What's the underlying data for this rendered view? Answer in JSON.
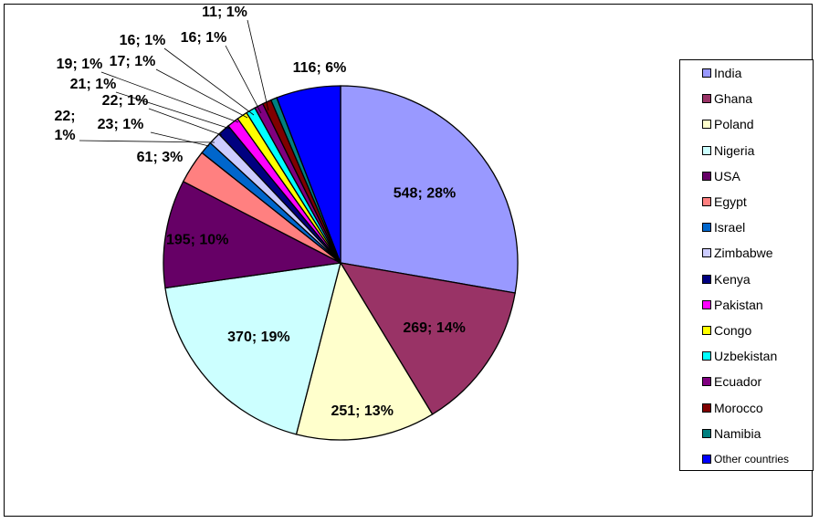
{
  "chart_data": {
    "type": "pie",
    "start_angle_deg": 0,
    "direction": "clockwise",
    "legend_position": "right",
    "slices": [
      {
        "name": "India",
        "value": 548,
        "label": "548; 28%",
        "color": "#9999FF"
      },
      {
        "name": "Ghana",
        "value": 269,
        "label": "269; 14%",
        "color": "#993366"
      },
      {
        "name": "Poland",
        "value": 251,
        "label": "251; 13%",
        "color": "#FFFFCC"
      },
      {
        "name": "Nigeria",
        "value": 370,
        "label": "370; 19%",
        "color": "#CCFFFF"
      },
      {
        "name": "USA",
        "value": 195,
        "label": "195; 10%",
        "color": "#660066"
      },
      {
        "name": "Egypt",
        "value": 61,
        "label": "61; 3%",
        "color": "#FF8080"
      },
      {
        "name": "Israel",
        "value": 23,
        "label": "23; 1%",
        "color": "#0066CC"
      },
      {
        "name": "Zimbabwe",
        "value": 22,
        "label": "22; 1%",
        "color": "#CCCCFF"
      },
      {
        "name": "Kenya",
        "value": 22,
        "label": "22; 1%",
        "color": "#000080"
      },
      {
        "name": "Pakistan",
        "value": 21,
        "label": "21; 1%",
        "color": "#FF00FF"
      },
      {
        "name": "Congo",
        "value": 19,
        "label": "19; 1%",
        "color": "#FFFF00"
      },
      {
        "name": "Uzbekistan",
        "value": 17,
        "label": "17; 1%",
        "color": "#00FFFF"
      },
      {
        "name": "Ecuador",
        "value": 16,
        "label": "16; 1%",
        "color": "#800080"
      },
      {
        "name": "Morocco",
        "value": 16,
        "label": "16; 1%",
        "color": "#800000"
      },
      {
        "name": "Namibia",
        "value": 11,
        "label": "11; 1%",
        "color": "#008080"
      },
      {
        "name": "Other countries",
        "value": 116,
        "label": "116; 6%",
        "color": "#0000FF"
      }
    ]
  }
}
